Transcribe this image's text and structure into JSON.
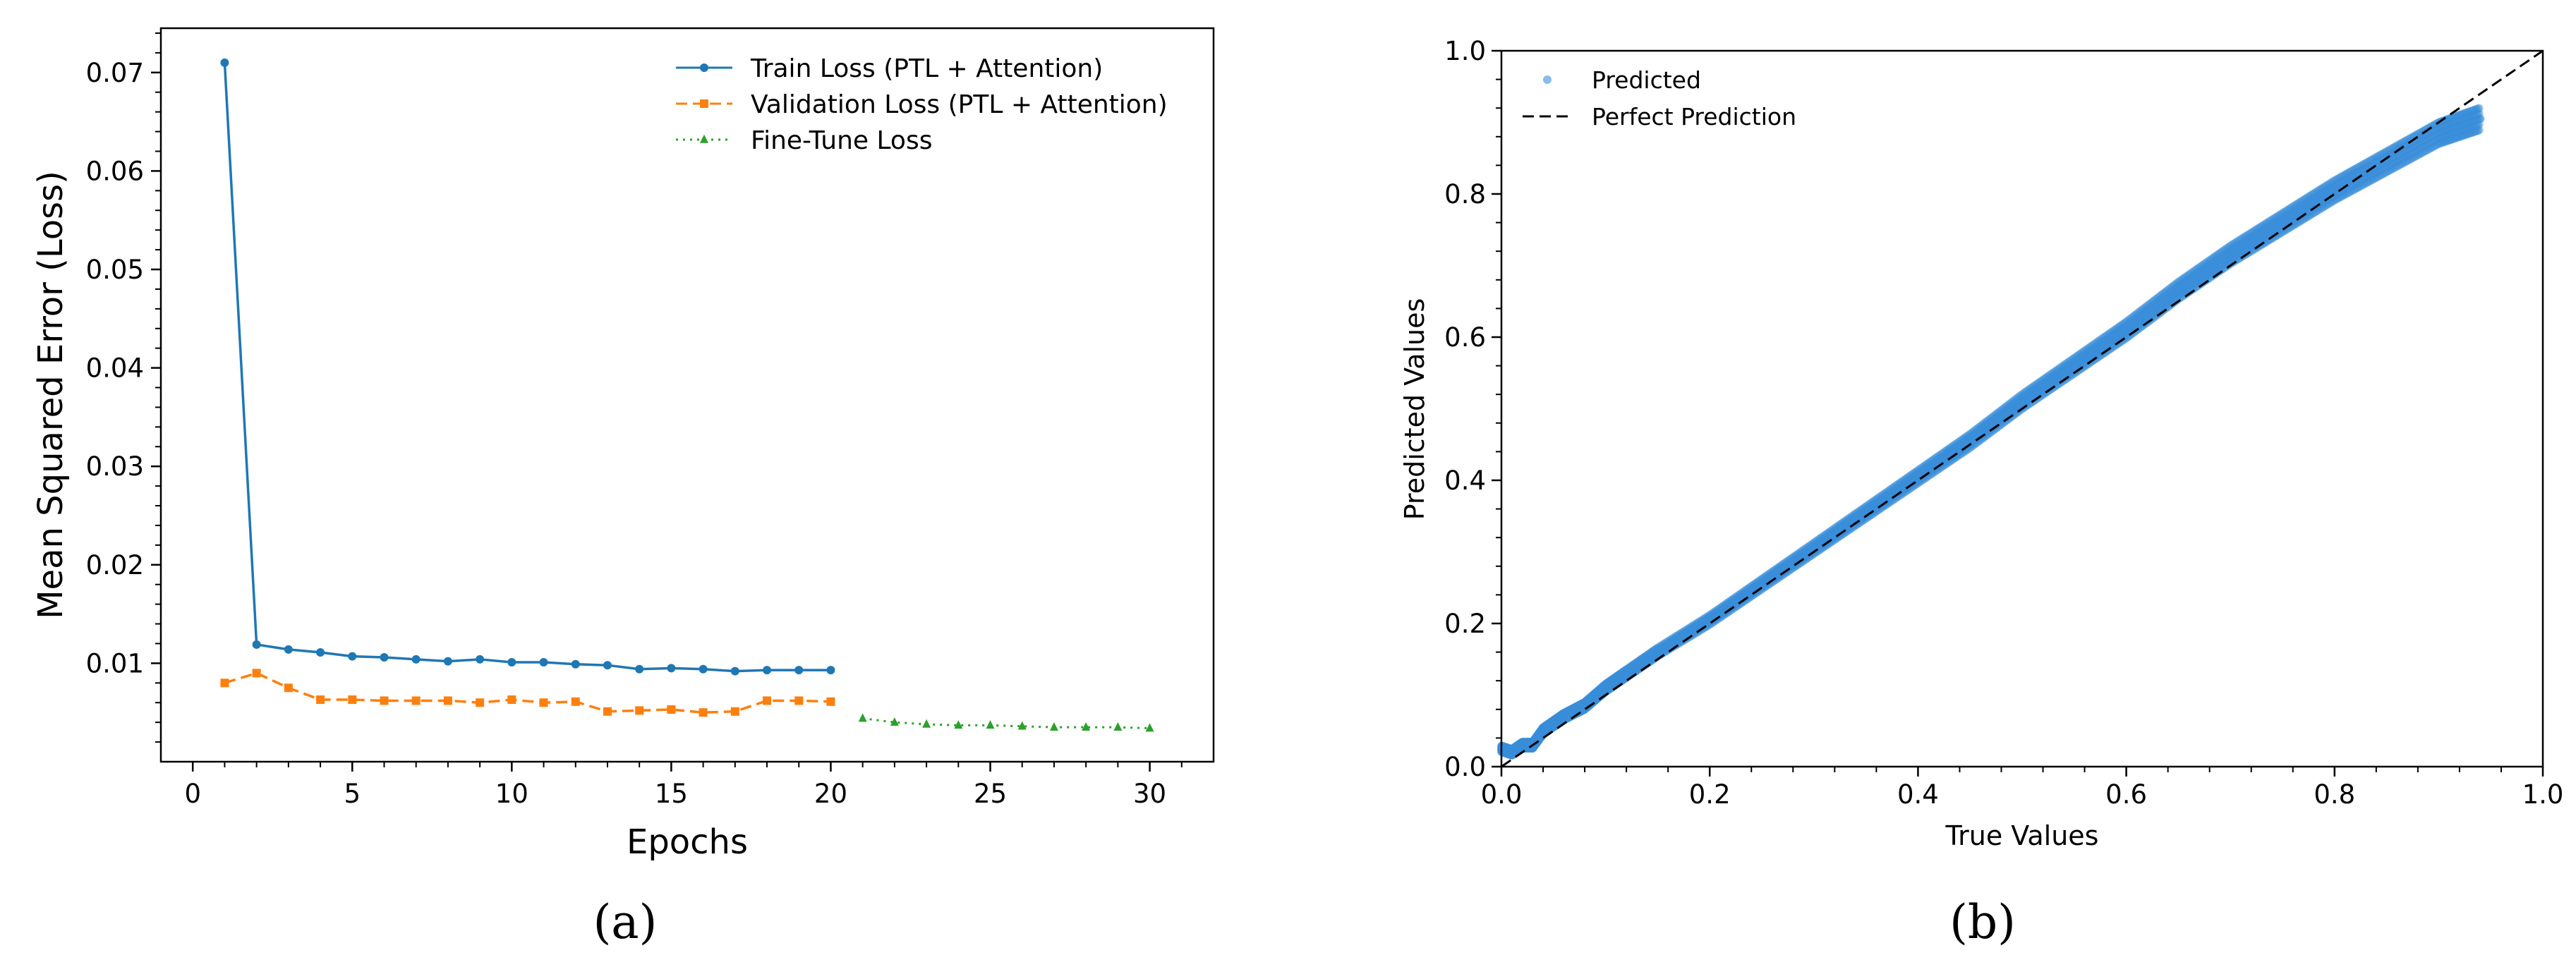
{
  "chart_data": [
    {
      "type": "line",
      "title": "",
      "xlabel": "Epochs",
      "ylabel": "Mean Squared Error (Loss)",
      "xlim": [
        -1,
        32
      ],
      "ylim": [
        0,
        0.0745
      ],
      "xticks": [
        0,
        5,
        10,
        15,
        20,
        25,
        30
      ],
      "yticks": [
        0.01,
        0.02,
        0.03,
        0.04,
        0.05,
        0.06,
        0.07
      ],
      "legend_position": "top-right",
      "grid": false,
      "panel_label": "(a)",
      "series": [
        {
          "name": "Train Loss (PTL + Attention)",
          "color": "#1f77b4",
          "linestyle": "solid",
          "marker": "circle",
          "x": [
            1,
            2,
            3,
            4,
            5,
            6,
            7,
            8,
            9,
            10,
            11,
            12,
            13,
            14,
            15,
            16,
            17,
            18,
            19,
            20
          ],
          "y": [
            0.071,
            0.0119,
            0.0114,
            0.0111,
            0.0107,
            0.0106,
            0.0104,
            0.0102,
            0.0104,
            0.0101,
            0.0101,
            0.0099,
            0.0098,
            0.0094,
            0.0095,
            0.0094,
            0.0092,
            0.0093,
            0.0093,
            0.0093
          ]
        },
        {
          "name": "Validation Loss (PTL + Attention)",
          "color": "#ff7f0e",
          "linestyle": "dashed",
          "marker": "square",
          "x": [
            1,
            2,
            3,
            4,
            5,
            6,
            7,
            8,
            9,
            10,
            11,
            12,
            13,
            14,
            15,
            16,
            17,
            18,
            19,
            20
          ],
          "y": [
            0.008,
            0.009,
            0.0075,
            0.0063,
            0.0063,
            0.0062,
            0.0062,
            0.0062,
            0.006,
            0.0063,
            0.006,
            0.0061,
            0.0051,
            0.0052,
            0.0053,
            0.005,
            0.0051,
            0.0062,
            0.0062,
            0.0061
          ]
        },
        {
          "name": "Fine-Tune Loss",
          "color": "#2ca02c",
          "linestyle": "dotted",
          "marker": "triangle",
          "x": [
            21,
            22,
            23,
            24,
            25,
            26,
            27,
            28,
            29,
            30
          ],
          "y": [
            0.0044,
            0.004,
            0.0038,
            0.0037,
            0.0037,
            0.0036,
            0.0035,
            0.0035,
            0.0035,
            0.0034
          ]
        }
      ]
    },
    {
      "type": "scatter",
      "title": "",
      "xlabel": "True Values",
      "ylabel": "Predicted Values",
      "xlim": [
        0,
        1
      ],
      "ylim": [
        0,
        1
      ],
      "xticks": [
        0.0,
        0.2,
        0.4,
        0.6,
        0.8,
        1.0
      ],
      "yticks": [
        0.0,
        0.2,
        0.4,
        0.6,
        0.8,
        1.0
      ],
      "legend_position": "top-left",
      "grid": false,
      "panel_label": "(b)",
      "series": [
        {
          "name": "Predicted",
          "color": "#3a8fd9",
          "marker": "circle",
          "points": [
            [
              0.0,
              0.025
            ],
            [
              0.01,
              0.02
            ],
            [
              0.02,
              0.03
            ],
            [
              0.03,
              0.03
            ],
            [
              0.04,
              0.05
            ],
            [
              0.05,
              0.06
            ],
            [
              0.06,
              0.07
            ],
            [
              0.08,
              0.085
            ],
            [
              0.1,
              0.11
            ],
            [
              0.12,
              0.13
            ],
            [
              0.15,
              0.16
            ],
            [
              0.2,
              0.205
            ],
            [
              0.25,
              0.255
            ],
            [
              0.3,
              0.305
            ],
            [
              0.35,
              0.355
            ],
            [
              0.4,
              0.405
            ],
            [
              0.45,
              0.455
            ],
            [
              0.5,
              0.51
            ],
            [
              0.55,
              0.56
            ],
            [
              0.6,
              0.61
            ],
            [
              0.65,
              0.665
            ],
            [
              0.7,
              0.715
            ],
            [
              0.75,
              0.76
            ],
            [
              0.8,
              0.805
            ],
            [
              0.85,
              0.845
            ],
            [
              0.9,
              0.885
            ],
            [
              0.94,
              0.905
            ]
          ]
        },
        {
          "name": "Perfect Prediction",
          "color": "#000000",
          "linestyle": "dashed",
          "x": [
            0,
            1
          ],
          "y": [
            0,
            1
          ]
        }
      ]
    }
  ]
}
